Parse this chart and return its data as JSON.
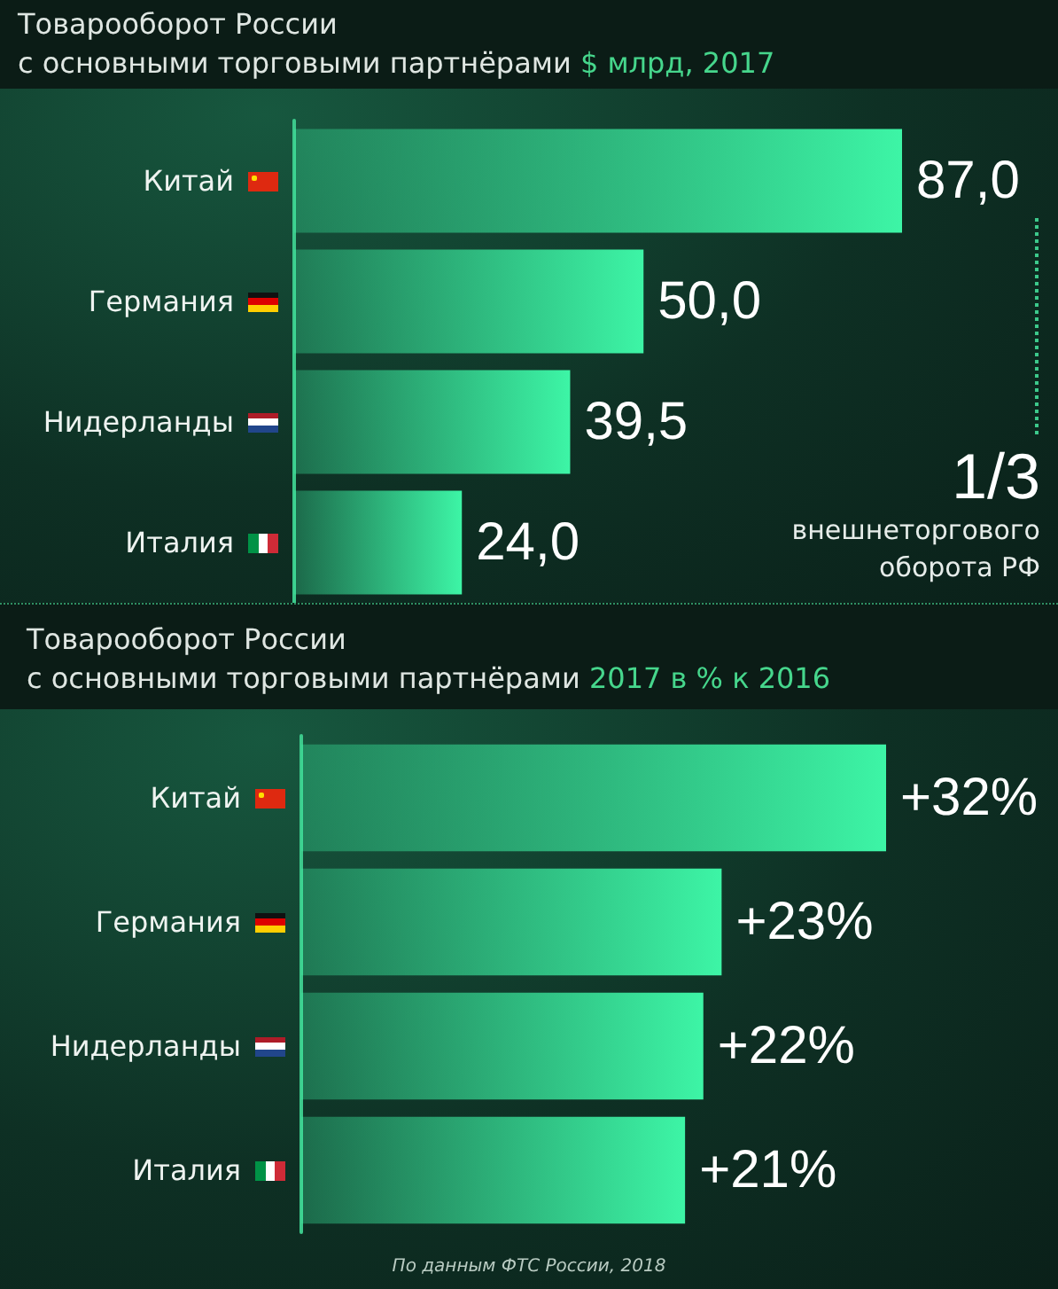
{
  "chart_data": [
    {
      "type": "bar",
      "orientation": "horizontal",
      "title": "Товарооборот России\nс основными торговыми партнёрами",
      "subtitle": "$ млрд, 2017",
      "categories": [
        "Китай",
        "Германия",
        "Нидерланды",
        "Италия"
      ],
      "values": [
        87.0,
        50.0,
        39.5,
        24.0
      ],
      "value_labels": [
        "87,0",
        "50,0",
        "39,5",
        "24,0"
      ],
      "color": "#3df5a6",
      "tick_labels": "y",
      "annotations": [
        "1/3",
        "внешнеторгового оборота РФ"
      ]
    },
    {
      "type": "bar",
      "orientation": "horizontal",
      "title": "Товарооборот России\nс основными торговыми партнёрами",
      "subtitle": "2017 в % к 2016",
      "categories": [
        "Китай",
        "Германия",
        "Нидерланды",
        "Италия"
      ],
      "values": [
        32,
        23,
        22,
        21
      ],
      "value_labels": [
        "+32%",
        "+23%",
        "+22%",
        "+21%"
      ],
      "color": "#3df5a6",
      "tick_labels": "y",
      "annotations": [
        "По данным ФТС России, 2018"
      ]
    }
  ]
}
